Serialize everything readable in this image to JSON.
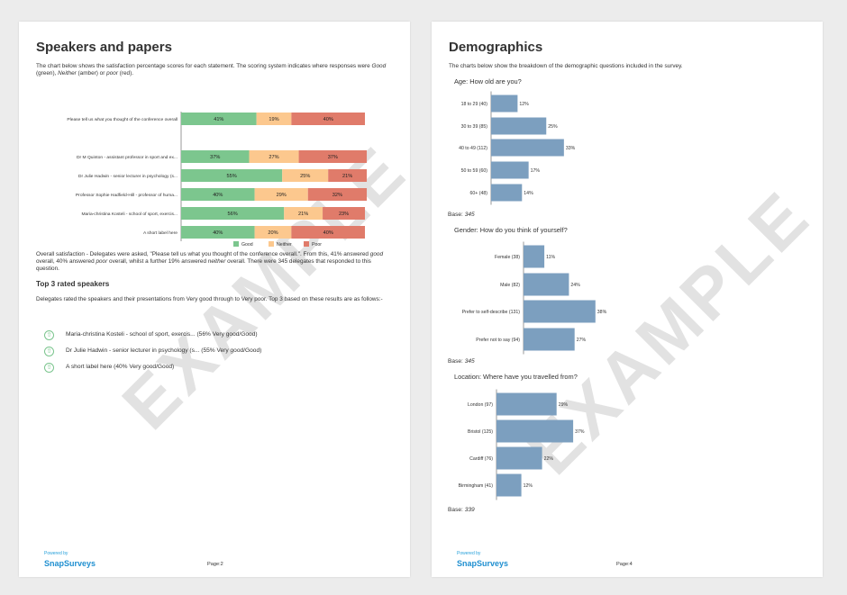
{
  "left_page": {
    "watermark": "EXAMPLE",
    "title": "Speakers and papers",
    "intro_a": "The chart below shows the satisfaction percentage scores for each statement. The scoring system indicates where responses were ",
    "intro_good": "Good",
    "intro_b": " (green), ",
    "intro_neither": "Neither",
    "intro_c": " (amber) or ",
    "intro_poor": "poor",
    "intro_d": " (red).",
    "summary_a": "Overall satisfaction - Delegates were asked, \"Please tell us what you thought of the conference overall.\". From this, 41% answered ",
    "summary_good": "good",
    "summary_b": " overall, 40% answered ",
    "summary_poor": "poor",
    "summary_c": " overall, whilst a further 19% answered ",
    "summary_neither": "neither",
    "summary_d": " overall. There were 345 delegates that responded to this question.",
    "top3_heading": "Top 3 rated speakers",
    "top3_intro": "Delegates rated the speakers and their presentations from Very good through to Very poor. Top 3 based on these results are as follows:-",
    "top3": [
      "Maria-christina Kosteli - school of sport, exercis... (56% Very good/Good)",
      "Dr Julie Hadwin - senior lecturer in psychology (s... (55% Very good/Good)",
      "A short label here (40% Very good/Good)"
    ],
    "top3_icon": "up-arrow-icon",
    "powered_by": "Powered by",
    "brand": "SnapSurveys",
    "page_number": "Page:2"
  },
  "right_page": {
    "watermark": "EXAMPLE",
    "title": "Demographics",
    "intro": "The charts below show the breakdown of the demographic questions included in the survey.",
    "age_title": "Age: How old are you?",
    "age_base_label": "Base:",
    "age_base_value": "345",
    "gender_title": "Gender: How do you think of yourself?",
    "gender_base_label": "Base:",
    "gender_base_value": "345",
    "location_title": "Location: Where have you travelled from?",
    "location_base_label": "Base:",
    "location_base_value": "339",
    "powered_by": "Powered by",
    "brand": "SnapSurveys",
    "page_number": "Page:4"
  },
  "colors": {
    "good": "#7cc68e",
    "neither": "#fcc88e",
    "poor": "#e07b6a",
    "demographic_bar": "#7c9fbf",
    "brand": "#1f8fd0"
  },
  "chart_data": [
    {
      "type": "bar",
      "orientation": "horizontal",
      "stacked": true,
      "categories": [
        "Please tell us what you thought of the conference overall",
        "Dr M Quinton - assistant professor in sport and ex...",
        "Dr Julie Hadwin - senior lecturer in psychology (s...",
        "Professor Sophie Hadfield-Hill - professor of huma...",
        "Maria-christina Kosteli - school of sport, exercis...",
        "A short label here"
      ],
      "series": [
        {
          "name": "Good",
          "values": [
            41,
            37,
            55,
            40,
            56,
            40
          ],
          "labels": [
            "41%",
            "37%",
            "55%",
            "40%",
            "56%",
            "40%"
          ]
        },
        {
          "name": "Neither",
          "values": [
            19,
            27,
            25,
            29,
            21,
            20
          ],
          "labels": [
            "19%",
            "27%",
            "25%",
            "29%",
            "21%",
            "20%"
          ]
        },
        {
          "name": "Poor",
          "values": [
            40,
            37,
            21,
            32,
            23,
            40
          ],
          "labels": [
            "40%",
            "37%",
            "21%",
            "32%",
            "23%",
            "40%"
          ]
        }
      ],
      "xlim": [
        0,
        100
      ],
      "legend": "bottom"
    },
    {
      "type": "bar",
      "orientation": "horizontal",
      "categories": [
        "18 to 29 (40)",
        "30 to 39 (85)",
        "40 to 49 (112)",
        "50 to 59 (60)",
        "60+ (48)"
      ],
      "values": [
        12,
        25,
        33,
        17,
        14
      ],
      "labels": [
        "12%",
        "25%",
        "33%",
        "17%",
        "14%"
      ],
      "xlim": [
        0,
        100
      ]
    },
    {
      "type": "bar",
      "orientation": "horizontal",
      "categories": [
        "Female (38)",
        "Male (82)",
        "Prefer to self-describe  (131)",
        "Prefer not to say (94)"
      ],
      "values": [
        11,
        24,
        38,
        27
      ],
      "labels": [
        "11%",
        "24%",
        "38%",
        "27%"
      ],
      "xlim": [
        0,
        100
      ]
    },
    {
      "type": "bar",
      "orientation": "horizontal",
      "categories": [
        "London (97)",
        "Bristol (125)",
        "Cardiff (76)",
        "Birmingham (41)"
      ],
      "values": [
        29,
        37,
        22,
        12
      ],
      "labels": [
        "29%",
        "37%",
        "22%",
        "12%"
      ],
      "xlim": [
        0,
        100
      ]
    }
  ]
}
